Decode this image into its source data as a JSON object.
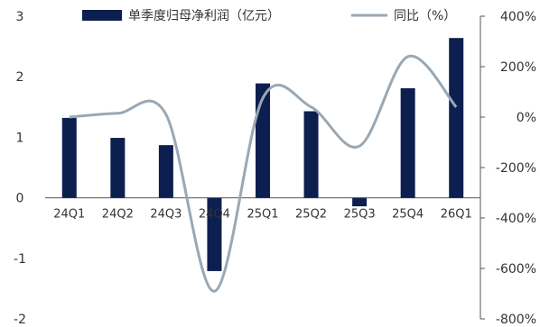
{
  "chart_data": {
    "type": "bar",
    "categories": [
      "24Q1",
      "24Q2",
      "24Q3",
      "24Q4",
      "25Q1",
      "25Q2",
      "25Q3",
      "25Q4",
      "26Q1"
    ],
    "series": [
      {
        "name": "单季度归母净利润（亿元）",
        "type": "bar",
        "axis": "left",
        "color": "#0d1f4f",
        "values": [
          1.32,
          0.99,
          0.87,
          -1.21,
          1.89,
          1.43,
          -0.14,
          1.81,
          2.64
        ]
      },
      {
        "name": "同比（%）",
        "type": "line",
        "axis": "right",
        "color": "#9aa8b4",
        "smooth": true,
        "values": [
          0,
          15,
          10,
          -690,
          75,
          40,
          -115,
          240,
          40
        ]
      }
    ],
    "left_axis": {
      "ylim": [
        -2,
        3
      ],
      "ticks": [
        -2,
        -1,
        0,
        1,
        2,
        3
      ],
      "tick_labels": [
        "-2",
        "-1",
        "0",
        "1",
        "2",
        "3"
      ]
    },
    "right_axis": {
      "ylim": [
        -800,
        400
      ],
      "ticks": [
        -800,
        -600,
        -400,
        -200,
        0,
        200,
        400
      ],
      "tick_labels": [
        "-800%",
        "-600%",
        "-400%",
        "-200%",
        "0%",
        "200%",
        "400%"
      ]
    },
    "legend_position": "top",
    "grid": false
  }
}
